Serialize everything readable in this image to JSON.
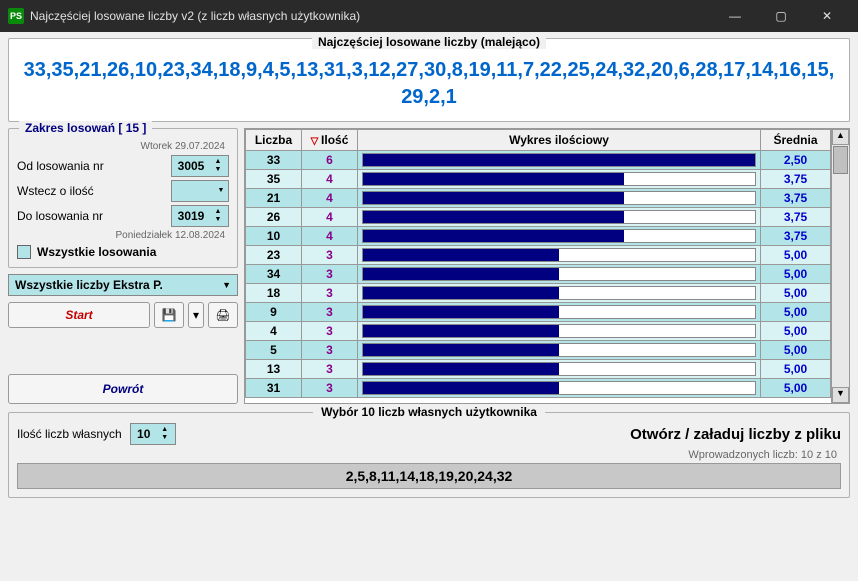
{
  "window": {
    "title": "Najczęściej losowane liczby v2 (z liczb własnych użytkownika)",
    "icon_label": "PS"
  },
  "top": {
    "label": "Najczęściej losowane liczby (malejąco)",
    "numbers": "33,35,21,26,10,23,34,18,9,4,5,13,31,3,12,27,30,8,19,11,7,22,25,24,32,20,6,28,17,14,16,15,29,2,1"
  },
  "range_panel": {
    "legend": "Zakres losowań  [ 15 ]",
    "date_top": "Wtorek 29.07.2024",
    "from_label": "Od losowania nr",
    "from_value": "3005",
    "back_label": "Wstecz o ilość",
    "to_label": "Do losowania nr",
    "to_value": "3019",
    "date_bottom": "Poniedziałek 12.08.2024",
    "all_draws": "Wszystkie losowania"
  },
  "mode_combo": "Wszystkie liczby Ekstra P.",
  "buttons": {
    "start": "Start",
    "return": "Powrót"
  },
  "table": {
    "headers": {
      "num": "Liczba",
      "count": "Ilość",
      "chart": "Wykres ilościowy",
      "avg": "Średnia"
    },
    "max_count": 6,
    "rows": [
      {
        "n": 33,
        "c": 6,
        "a": "2,50"
      },
      {
        "n": 35,
        "c": 4,
        "a": "3,75"
      },
      {
        "n": 21,
        "c": 4,
        "a": "3,75"
      },
      {
        "n": 26,
        "c": 4,
        "a": "3,75"
      },
      {
        "n": 10,
        "c": 4,
        "a": "3,75"
      },
      {
        "n": 23,
        "c": 3,
        "a": "5,00"
      },
      {
        "n": 34,
        "c": 3,
        "a": "5,00"
      },
      {
        "n": 18,
        "c": 3,
        "a": "5,00"
      },
      {
        "n": 9,
        "c": 3,
        "a": "5,00"
      },
      {
        "n": 4,
        "c": 3,
        "a": "5,00"
      },
      {
        "n": 5,
        "c": 3,
        "a": "5,00"
      },
      {
        "n": 13,
        "c": 3,
        "a": "5,00"
      },
      {
        "n": 31,
        "c": 3,
        "a": "5,00"
      }
    ]
  },
  "own": {
    "legend": "Wybór 10 liczb własnych użytkownika",
    "count_label": "Ilość liczb własnych",
    "count_value": "10",
    "open_label": "Otwórz / załaduj liczby z pliku",
    "entered": "Wprowadzonych liczb:  10 z 10",
    "numbers": "2,5,8,11,14,18,19,20,24,32"
  }
}
